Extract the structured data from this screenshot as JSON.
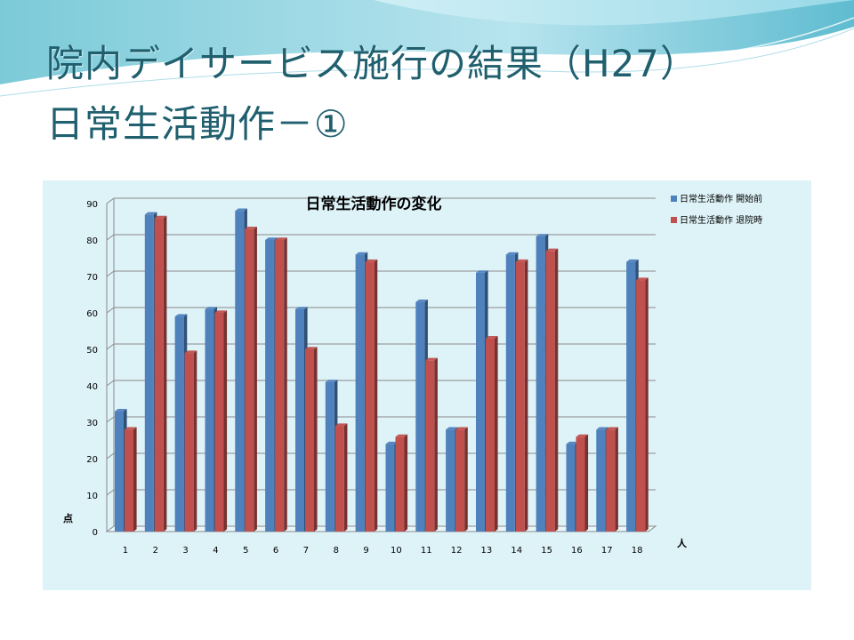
{
  "slide": {
    "title_line1": "院内デイサービス施行の結果（H27）",
    "title_line2": "日常生活動作－①"
  },
  "colors": {
    "title": "#1f5f6e",
    "panel_bg": "#def3f8",
    "series_before": "#4f81bd",
    "series_after": "#c0504d"
  },
  "chart_data": {
    "type": "bar",
    "title": "日常生活動作の変化",
    "categories": [
      "1",
      "2",
      "3",
      "4",
      "5",
      "6",
      "7",
      "8",
      "9",
      "10",
      "11",
      "12",
      "13",
      "14",
      "15",
      "16",
      "17",
      "18"
    ],
    "series": [
      {
        "name": "日常生活動作 開始前",
        "values": [
          33,
          87,
          59,
          61,
          88,
          80,
          61,
          41,
          76,
          24,
          63,
          28,
          71,
          76,
          81,
          24,
          28,
          74
        ]
      },
      {
        "name": "日常生活動作 退院時",
        "values": [
          28,
          86,
          49,
          60,
          83,
          80,
          50,
          29,
          74,
          26,
          47,
          28,
          53,
          74,
          77,
          26,
          28,
          69
        ]
      }
    ],
    "ylim": [
      0,
      90
    ],
    "yticks": [
      "0",
      "10",
      "20",
      "30",
      "40",
      "50",
      "60",
      "70",
      "80",
      "90"
    ],
    "ylabel": "点",
    "xlabel": "人",
    "grid": true,
    "legend": "top-right",
    "style": "3d-clustered-column"
  }
}
